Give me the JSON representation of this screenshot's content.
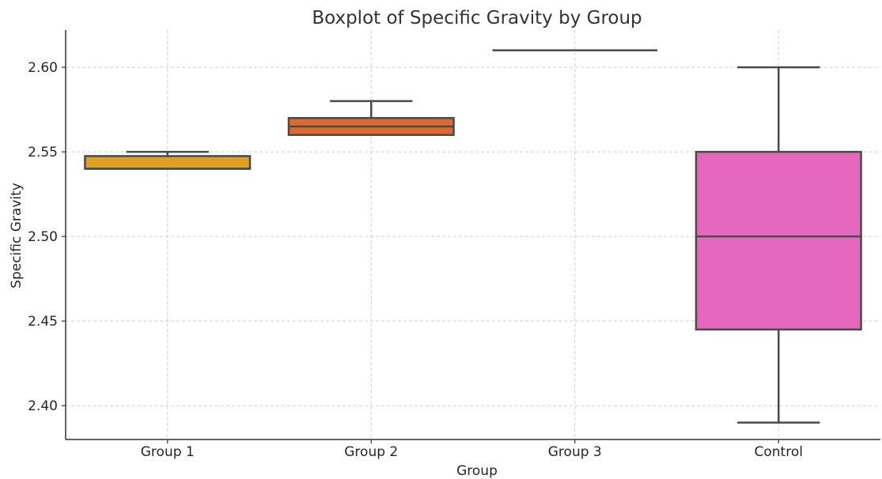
{
  "chart_data": {
    "type": "boxplot",
    "title": "Boxplot of Specific Gravity by Group",
    "xlabel": "Group",
    "ylabel": "Specific Gravity",
    "ylim": [
      2.38,
      2.622
    ],
    "yticks": [
      "2.40",
      "2.45",
      "2.50",
      "2.55",
      "2.60"
    ],
    "ytick_values": [
      2.4,
      2.45,
      2.5,
      2.55,
      2.6
    ],
    "grid": true,
    "categories": [
      "Group 1",
      "Group 2",
      "Group 3",
      "Control"
    ],
    "boxes": [
      {
        "category": "Group 1",
        "whisker_low": 2.54,
        "q1": 2.54,
        "median": 2.54,
        "q3": 2.5475,
        "whisker_high": 2.55,
        "color": "#E0A020"
      },
      {
        "category": "Group 2",
        "whisker_low": 2.56,
        "q1": 2.56,
        "median": 2.565,
        "q3": 2.57,
        "whisker_high": 2.58,
        "color": "#DD6B30"
      },
      {
        "category": "Group 3",
        "whisker_low": 2.61,
        "q1": 2.61,
        "median": 2.61,
        "q3": 2.61,
        "whisker_high": 2.61,
        "color": "#666666"
      },
      {
        "category": "Control",
        "whisker_low": 2.39,
        "q1": 2.445,
        "median": 2.5,
        "q3": 2.55,
        "whisker_high": 2.6,
        "color": "#E667BE"
      }
    ]
  }
}
